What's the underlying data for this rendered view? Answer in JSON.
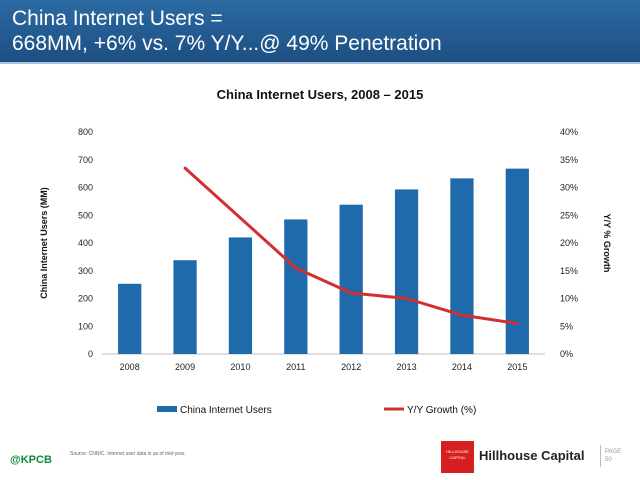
{
  "header": {
    "line1": "China Internet Users =",
    "line2": "668MM, +6% vs. 7% Y/Y...@ 49% Penetration"
  },
  "chart_data": {
    "type": "bar",
    "title": "China Internet Users, 2008 – 2015",
    "categories": [
      "2008",
      "2009",
      "2010",
      "2011",
      "2012",
      "2013",
      "2014",
      "2015"
    ],
    "series": [
      {
        "name": "China Internet Users",
        "type": "bar",
        "axis": "left",
        "color": "#1f6aab",
        "values": [
          253,
          338,
          420,
          485,
          538,
          593,
          633,
          668
        ]
      },
      {
        "name": "Y/Y Growth (%)",
        "type": "line",
        "axis": "right",
        "color": "#d32f2f",
        "values": [
          null,
          33.5,
          24.5,
          15.5,
          11,
          10,
          7,
          5.5
        ]
      }
    ],
    "ylabel": "China Internet Users (MM)",
    "y2label": "Y/Y % Growth",
    "ylim": [
      0,
      800
    ],
    "y2lim": [
      0,
      40
    ],
    "yticks": [
      "0",
      "100",
      "200",
      "300",
      "400",
      "500",
      "600",
      "700",
      "800"
    ],
    "y2ticks": [
      "0%",
      "5%",
      "10%",
      "15%",
      "20%",
      "25%",
      "30%",
      "35%",
      "40%"
    ],
    "legend_labels": [
      "China Internet Users",
      "Y/Y Growth (%)"
    ],
    "grid": false
  },
  "footer": {
    "brand": "@KPCB",
    "source": "Source: CNNIC. Internet user data is as of mid-year.",
    "company": "Hillhouse Capital",
    "logo_text": "HILLHOUSE CAPITAL",
    "page_label": "PAGE",
    "page_number": "50"
  },
  "colors": {
    "header": "#1d4f82",
    "bar": "#1f6aab",
    "line": "#d32f2f"
  }
}
